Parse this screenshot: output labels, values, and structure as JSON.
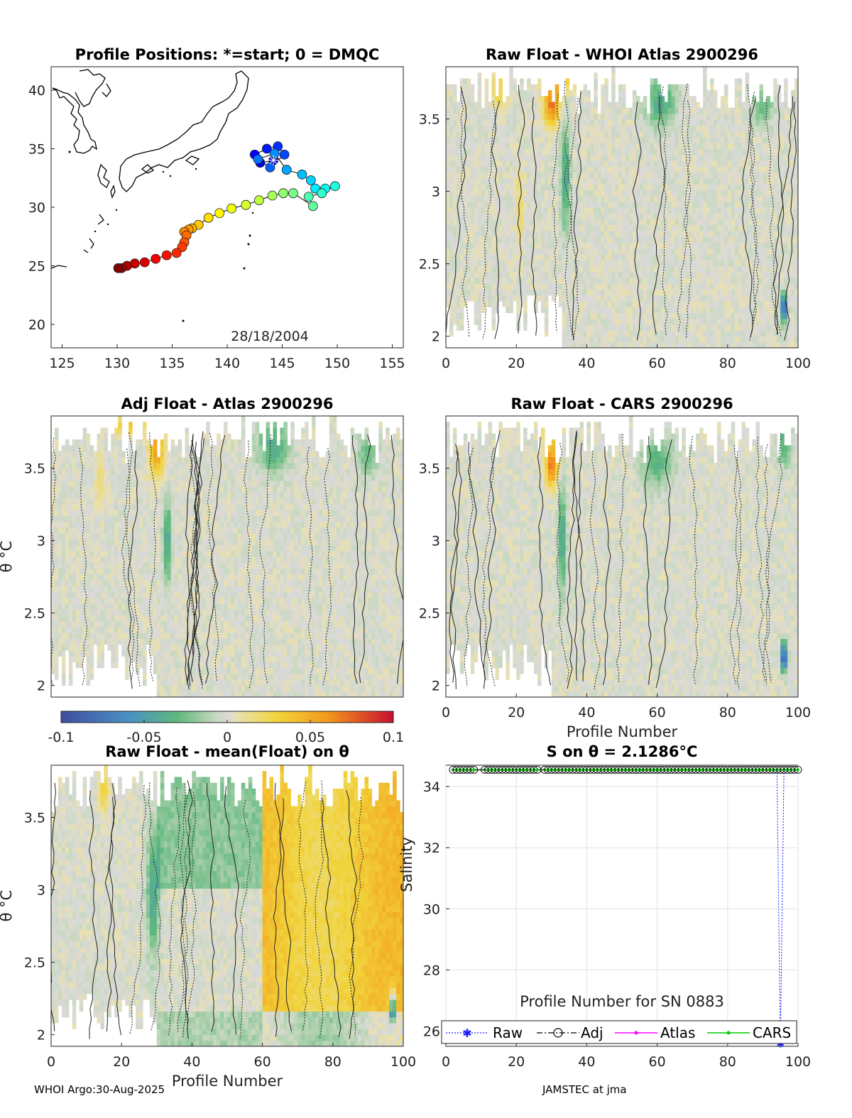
{
  "footer": {
    "left": "WHOI Argo:30-Aug-2025",
    "right": "JAMSTEC at jma"
  },
  "colors": {
    "raw": "#1a1aff",
    "adj": "#000000",
    "atlas": "#ff00ff",
    "cars": "#00cc00"
  },
  "chart_data": [
    {
      "type": "scatter",
      "id": "map",
      "title": "Profile Positions: *=start; 0 = DMQC",
      "annotation": "28/18/2004",
      "xlim": [
        124,
        156
      ],
      "ylim": [
        18,
        42
      ],
      "xticks": [
        "125",
        "130",
        "135",
        "140",
        "145",
        "150",
        "155"
      ],
      "yticks": [
        "20",
        "25",
        "30",
        "35",
        "40"
      ],
      "track": [
        [
          144.2,
          34.0
        ],
        [
          143.0,
          33.8
        ],
        [
          142.5,
          34.5
        ],
        [
          143.6,
          35.0
        ],
        [
          144.6,
          35.2
        ],
        [
          145.2,
          34.5
        ],
        [
          143.9,
          33.4
        ],
        [
          142.8,
          34.1
        ],
        [
          144.3,
          34.6
        ],
        [
          145.4,
          33.2
        ],
        [
          146.8,
          32.8
        ],
        [
          147.6,
          32.3
        ],
        [
          148.0,
          31.6
        ],
        [
          148.9,
          31.6
        ],
        [
          149.8,
          31.8
        ],
        [
          148.6,
          31.2
        ],
        [
          147.4,
          30.9
        ],
        [
          147.8,
          30.1
        ],
        [
          146.0,
          31.2
        ],
        [
          145.1,
          31.2
        ],
        [
          144.1,
          31.0
        ],
        [
          142.9,
          30.6
        ],
        [
          141.7,
          30.2
        ],
        [
          140.4,
          29.9
        ],
        [
          139.3,
          29.5
        ],
        [
          138.3,
          29.1
        ],
        [
          137.4,
          28.5
        ],
        [
          136.8,
          28.2
        ],
        [
          136.5,
          28.1
        ],
        [
          136.1,
          27.9
        ],
        [
          136.3,
          27.6
        ],
        [
          136.1,
          27.0
        ],
        [
          135.9,
          26.6
        ],
        [
          135.4,
          26.1
        ],
        [
          134.5,
          25.9
        ],
        [
          133.5,
          25.6
        ],
        [
          132.5,
          25.3
        ],
        [
          131.6,
          25.2
        ],
        [
          130.9,
          25.0
        ],
        [
          130.4,
          24.8
        ],
        [
          130.1,
          24.8
        ]
      ]
    },
    {
      "type": "heatmap",
      "id": "p1",
      "title": "Raw Float - WHOI Atlas  2900296",
      "xlabel": "",
      "ylabel": "",
      "xlim": [
        0,
        100
      ],
      "ylim": [
        1.92,
        3.86
      ],
      "xticks": [
        "0",
        "20",
        "40",
        "60",
        "80",
        "100"
      ],
      "yticks": [
        "2",
        "2.5",
        "3",
        "3.5"
      ],
      "features": [
        {
          "x": 30,
          "y": 3.6,
          "v": 0.07,
          "sx": 1.6,
          "sy": 0.1
        },
        {
          "x": 32,
          "y": 3.78,
          "v": 0.05,
          "sx": 3,
          "sy": 0.06
        },
        {
          "x": 15,
          "y": 3.7,
          "v": 0.025,
          "sx": 1.5,
          "sy": 0.1
        },
        {
          "x": 61,
          "y": 3.62,
          "v": -0.04,
          "sx": 3,
          "sy": 0.12
        },
        {
          "x": 34,
          "y": 3.1,
          "v": -0.045,
          "sx": 0.9,
          "sy": 0.25
        },
        {
          "x": 96,
          "y": 2.2,
          "v": -0.1,
          "sx": 0.6,
          "sy": 0.07
        },
        {
          "x": 90,
          "y": 3.6,
          "v": -0.03,
          "sx": 2,
          "sy": 0.1
        },
        {
          "x": 21,
          "y": 2.9,
          "v": 0.02,
          "sx": 0.8,
          "sy": 0.2
        }
      ]
    },
    {
      "type": "heatmap",
      "id": "p2",
      "title": "Adj Float - Atlas  2900296",
      "xlabel": "",
      "ylabel": "θ °C",
      "xlim": [
        0,
        100
      ],
      "ylim": [
        1.92,
        3.86
      ],
      "xticks": [],
      "yticks": [
        "2",
        "2.5",
        "3",
        "3.5"
      ],
      "features": [
        {
          "x": 30,
          "y": 3.62,
          "v": 0.06,
          "sx": 1.5,
          "sy": 0.12
        },
        {
          "x": 22,
          "y": 3.8,
          "v": 0.04,
          "sx": 3,
          "sy": 0.05
        },
        {
          "x": 63,
          "y": 3.65,
          "v": -0.04,
          "sx": 3,
          "sy": 0.12
        },
        {
          "x": 33,
          "y": 3.0,
          "v": -0.045,
          "sx": 0.8,
          "sy": 0.2
        },
        {
          "x": 90,
          "y": 3.6,
          "v": -0.03,
          "sx": 2,
          "sy": 0.1
        },
        {
          "x": 14,
          "y": 3.4,
          "v": 0.02,
          "sx": 1,
          "sy": 0.15
        }
      ]
    },
    {
      "type": "heatmap",
      "id": "p3",
      "title": "Raw Float - CARS  2900296",
      "xlabel": "Profile Number",
      "ylabel": "",
      "xlim": [
        0,
        100
      ],
      "ylim": [
        1.92,
        3.86
      ],
      "xticks": [
        "0",
        "20",
        "40",
        "60",
        "80",
        "100"
      ],
      "yticks": [
        "2",
        "2.5",
        "3",
        "3.5"
      ],
      "features": [
        {
          "x": 30,
          "y": 3.52,
          "v": 0.07,
          "sx": 1.2,
          "sy": 0.1
        },
        {
          "x": 30,
          "y": 3.75,
          "v": 0.025,
          "sx": 2,
          "sy": 0.08
        },
        {
          "x": 60,
          "y": 3.55,
          "v": -0.035,
          "sx": 3,
          "sy": 0.12
        },
        {
          "x": 33,
          "y": 3.0,
          "v": -0.045,
          "sx": 0.8,
          "sy": 0.25
        },
        {
          "x": 96,
          "y": 2.2,
          "v": -0.1,
          "sx": 0.6,
          "sy": 0.07
        },
        {
          "x": 96,
          "y": 3.7,
          "v": -0.035,
          "sx": 1.5,
          "sy": 0.12
        }
      ]
    },
    {
      "type": "heatmap",
      "id": "p4",
      "title": "Raw Float - mean(Float) on θ",
      "xlabel": "Profile Number",
      "ylabel": "θ °C",
      "xlim": [
        0,
        100
      ],
      "ylim": [
        1.92,
        3.86
      ],
      "xticks": [
        "0",
        "20",
        "40",
        "60",
        "80",
        "100"
      ],
      "yticks": [
        "2",
        "2.5",
        "3",
        "3.5"
      ],
      "features": [
        {
          "x": 29,
          "y": 3.0,
          "v": -0.045,
          "sx": 1.2,
          "sy": 0.3
        },
        {
          "x": 97,
          "y": 2.2,
          "v": -0.1,
          "sx": 0.6,
          "sy": 0.07
        },
        {
          "x": 15,
          "y": 3.7,
          "v": 0.03,
          "sx": 1,
          "sy": 0.12
        }
      ]
    },
    {
      "type": "line",
      "id": "salinity",
      "title": "S on θ = 2.1286°C",
      "xlabel": "Profile Number for SN 0883",
      "ylabel": "Salinity",
      "xlim": [
        0,
        100
      ],
      "ylim": [
        25.5,
        34.7
      ],
      "xticks": [
        "0",
        "20",
        "40",
        "60",
        "80",
        "100"
      ],
      "yticks": [
        "26",
        "28",
        "30",
        "32",
        "34"
      ],
      "x_start": 2,
      "x_end": 100,
      "gaps": [
        [
          8,
          11
        ],
        [
          26,
          28
        ]
      ],
      "series": [
        {
          "name": "Raw",
          "value": 34.55,
          "outlier": {
            "x": 95,
            "y": 25.6
          }
        },
        {
          "name": "Adj",
          "value": 34.55
        },
        {
          "name": "Atlas",
          "value": 34.55
        },
        {
          "name": "CARS",
          "value": 34.55
        }
      ]
    }
  ],
  "colorbar": {
    "ticks": [
      "-0.1",
      "-0.05",
      "0",
      "0.05",
      "0.1"
    ],
    "range": [
      -0.1,
      0.1
    ]
  }
}
